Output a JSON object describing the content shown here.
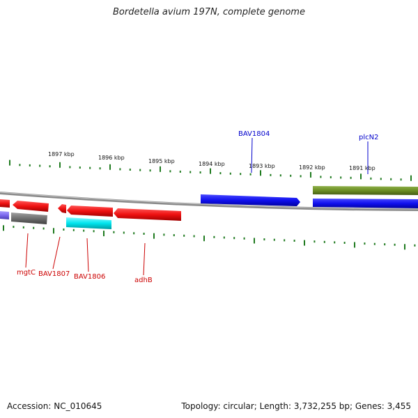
{
  "title": "Bordetella avium 197N, complete genome",
  "footer": {
    "accession": "Accession: NC_010645",
    "summary": "Topology: circular; Length: 3,732,255 bp; Genes: 3,455"
  },
  "colors": {
    "backbone": "#8a8a8a",
    "tick": "#1e7a1e",
    "forward_gene": "#1010ee",
    "reverse_gene": "#ee1111",
    "green_gene": "#6b8e23",
    "cyan_gene": "#00e5ee",
    "gray_gene": "#707070",
    "purple_gene": "#7b68ee",
    "forward_label": "#0000cc",
    "reverse_label": "#cc0000"
  },
  "kbp_labels": [
    "1897 kbp",
    "1896 kbp",
    "1895 kbp",
    "1894 kbp",
    "1893 kbp",
    "1892 kbp",
    "1891 kbp"
  ],
  "gene_labels": {
    "forward": [
      "BAV1804",
      "plcN2"
    ],
    "reverse": [
      "mgtC",
      "BAV1807",
      "BAV1806",
      "adhB"
    ]
  }
}
